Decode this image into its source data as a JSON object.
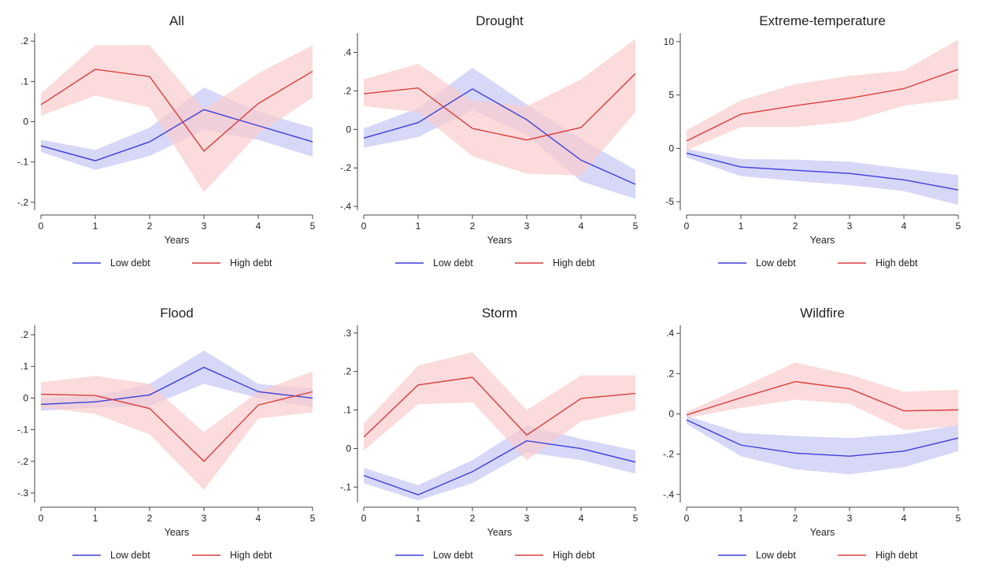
{
  "figure": {
    "colors": {
      "low": "#3f3fd9",
      "low_band": "#c9c9f5",
      "high": "#d93f3f",
      "high_band": "#f9cccc",
      "axis": "#444444"
    }
  },
  "chart_data": [
    {
      "type": "line",
      "title": "All",
      "xlabel": "Years",
      "ylabel": "",
      "x": [
        0,
        1,
        2,
        3,
        4,
        5
      ],
      "xticks": [
        "0",
        "1",
        "2",
        "3",
        "4",
        "5"
      ],
      "ylim": [
        -0.22,
        0.22
      ],
      "yticks": [
        -0.2,
        -0.1,
        0,
        0.1,
        0.2
      ],
      "ytick_labels": [
        "-.2",
        "-.1",
        "0",
        ".1",
        ".2"
      ],
      "legend_position": "bottom",
      "series": [
        {
          "name": "Low debt",
          "color": "#3f3fd9",
          "values": [
            -0.06,
            -0.097,
            -0.05,
            0.03,
            -0.01,
            -0.05
          ],
          "lower": [
            -0.075,
            -0.12,
            -0.085,
            -0.02,
            -0.045,
            -0.087
          ],
          "upper": [
            -0.045,
            -0.07,
            -0.015,
            0.085,
            0.025,
            -0.015
          ]
        },
        {
          "name": "High debt",
          "color": "#d93f3f",
          "values": [
            0.042,
            0.13,
            0.112,
            -0.073,
            0.045,
            0.125
          ],
          "lower": [
            0.015,
            0.065,
            0.035,
            -0.175,
            -0.03,
            0.06
          ],
          "upper": [
            0.07,
            0.19,
            0.19,
            0.03,
            0.12,
            0.19
          ]
        }
      ]
    },
    {
      "type": "line",
      "title": "Drought",
      "xlabel": "Years",
      "ylabel": "",
      "x": [
        0,
        1,
        2,
        3,
        4,
        5
      ],
      "xticks": [
        "0",
        "1",
        "2",
        "3",
        "4",
        "5"
      ],
      "ylim": [
        -0.42,
        0.5
      ],
      "yticks": [
        -0.4,
        -0.2,
        0,
        0.2,
        0.4
      ],
      "ytick_labels": [
        "-.4",
        "-.2",
        "0",
        ".2",
        ".4"
      ],
      "legend_position": "bottom",
      "series": [
        {
          "name": "Low debt",
          "color": "#3f3fd9",
          "values": [
            -0.045,
            0.035,
            0.21,
            0.05,
            -0.16,
            -0.285
          ],
          "lower": [
            -0.095,
            -0.04,
            0.1,
            -0.03,
            -0.27,
            -0.36
          ],
          "upper": [
            0.005,
            0.11,
            0.32,
            0.13,
            -0.05,
            -0.21
          ]
        },
        {
          "name": "High debt",
          "color": "#d93f3f",
          "values": [
            0.185,
            0.215,
            0.005,
            -0.055,
            0.01,
            0.29
          ],
          "lower": [
            0.12,
            0.09,
            -0.14,
            -0.23,
            -0.24,
            0.09
          ],
          "upper": [
            0.26,
            0.34,
            0.15,
            0.12,
            0.26,
            0.47
          ]
        }
      ]
    },
    {
      "type": "line",
      "title": "Extreme-temperature",
      "xlabel": "Years",
      "ylabel": "",
      "x": [
        0,
        1,
        2,
        3,
        4,
        5
      ],
      "xticks": [
        "0",
        "1",
        "2",
        "3",
        "4",
        "5"
      ],
      "ylim": [
        -5.8,
        10.8
      ],
      "yticks": [
        -5,
        0,
        5,
        10
      ],
      "ytick_labels": [
        "-5",
        "0",
        "5",
        "10"
      ],
      "legend_position": "bottom",
      "series": [
        {
          "name": "Low debt",
          "color": "#3f3fd9",
          "values": [
            -0.45,
            -1.75,
            -2.05,
            -2.35,
            -2.95,
            -3.9
          ],
          "lower": [
            -0.85,
            -2.6,
            -3.05,
            -3.45,
            -4.0,
            -5.3
          ],
          "upper": [
            -0.05,
            -1.0,
            -1.05,
            -1.25,
            -1.9,
            -2.5
          ]
        },
        {
          "name": "High debt",
          "color": "#d93f3f",
          "values": [
            0.7,
            3.2,
            4.0,
            4.7,
            5.6,
            7.4
          ],
          "lower": [
            -0.2,
            2.0,
            2.0,
            2.5,
            4.0,
            4.6
          ],
          "upper": [
            1.7,
            4.5,
            6.0,
            6.8,
            7.3,
            10.2
          ]
        }
      ]
    },
    {
      "type": "line",
      "title": "Flood",
      "xlabel": "Years",
      "ylabel": "",
      "x": [
        0,
        1,
        2,
        3,
        4,
        5
      ],
      "xticks": [
        "0",
        "1",
        "2",
        "3",
        "4",
        "5"
      ],
      "ylim": [
        -0.33,
        0.23
      ],
      "yticks": [
        -0.3,
        -0.2,
        -0.1,
        0,
        0.1,
        0.2
      ],
      "ytick_labels": [
        "-.3",
        "-.2",
        "-.1",
        "0",
        ".1",
        ".2"
      ],
      "legend_position": "bottom",
      "series": [
        {
          "name": "Low debt",
          "color": "#3f3fd9",
          "values": [
            -0.02,
            -0.012,
            0.01,
            0.097,
            0.02,
            0.0
          ],
          "lower": [
            -0.04,
            -0.03,
            -0.025,
            0.045,
            0.0,
            -0.03
          ],
          "upper": [
            0.0,
            0.005,
            0.045,
            0.15,
            0.045,
            0.03
          ]
        },
        {
          "name": "High debt",
          "color": "#d93f3f",
          "values": [
            0.012,
            0.008,
            -0.033,
            -0.2,
            -0.022,
            0.02
          ],
          "lower": [
            -0.03,
            -0.05,
            -0.115,
            -0.29,
            -0.065,
            -0.045
          ],
          "upper": [
            0.05,
            0.07,
            0.045,
            -0.108,
            0.02,
            0.085
          ]
        }
      ]
    },
    {
      "type": "line",
      "title": "Storm",
      "xlabel": "Years",
      "ylabel": "",
      "x": [
        0,
        1,
        2,
        3,
        4,
        5
      ],
      "xticks": [
        "0",
        "1",
        "2",
        "3",
        "4",
        "5"
      ],
      "ylim": [
        -0.14,
        0.32
      ],
      "yticks": [
        -0.1,
        0,
        0.1,
        0.2,
        0.3
      ],
      "ytick_labels": [
        "-.1",
        "0",
        ".1",
        ".2",
        ".3"
      ],
      "legend_position": "bottom",
      "series": [
        {
          "name": "Low debt",
          "color": "#3f3fd9",
          "values": [
            -0.07,
            -0.12,
            -0.06,
            0.02,
            0.0,
            -0.035
          ],
          "lower": [
            -0.09,
            -0.135,
            -0.09,
            -0.01,
            -0.03,
            -0.065
          ],
          "upper": [
            -0.05,
            -0.095,
            -0.03,
            0.06,
            0.025,
            -0.005
          ]
        },
        {
          "name": "High debt",
          "color": "#d93f3f",
          "values": [
            0.03,
            0.165,
            0.185,
            0.035,
            0.13,
            0.143
          ],
          "lower": [
            -0.005,
            0.115,
            0.12,
            -0.03,
            0.07,
            0.1
          ],
          "upper": [
            0.065,
            0.215,
            0.25,
            0.1,
            0.19,
            0.19
          ]
        }
      ]
    },
    {
      "type": "line",
      "title": "Wildfire",
      "xlabel": "Years",
      "ylabel": "",
      "x": [
        0,
        1,
        2,
        3,
        4,
        5
      ],
      "xticks": [
        "0",
        "1",
        "2",
        "3",
        "4",
        "5"
      ],
      "ylim": [
        -0.44,
        0.44
      ],
      "yticks": [
        -0.4,
        -0.2,
        0,
        0.2,
        0.4
      ],
      "ytick_labels": [
        "-.4",
        "-.2",
        "0",
        ".2",
        ".4"
      ],
      "legend_position": "bottom",
      "series": [
        {
          "name": "Low debt",
          "color": "#3f3fd9",
          "values": [
            -0.03,
            -0.155,
            -0.195,
            -0.21,
            -0.185,
            -0.12
          ],
          "lower": [
            -0.05,
            -0.21,
            -0.275,
            -0.3,
            -0.265,
            -0.185
          ],
          "upper": [
            -0.01,
            -0.095,
            -0.11,
            -0.12,
            -0.1,
            -0.055
          ]
        },
        {
          "name": "High debt",
          "color": "#d93f3f",
          "values": [
            -0.005,
            0.08,
            0.16,
            0.125,
            0.015,
            0.02
          ],
          "lower": [
            -0.02,
            0.03,
            0.07,
            0.05,
            -0.08,
            -0.06
          ],
          "upper": [
            0.01,
            0.13,
            0.255,
            0.195,
            0.11,
            0.12
          ]
        }
      ]
    }
  ]
}
